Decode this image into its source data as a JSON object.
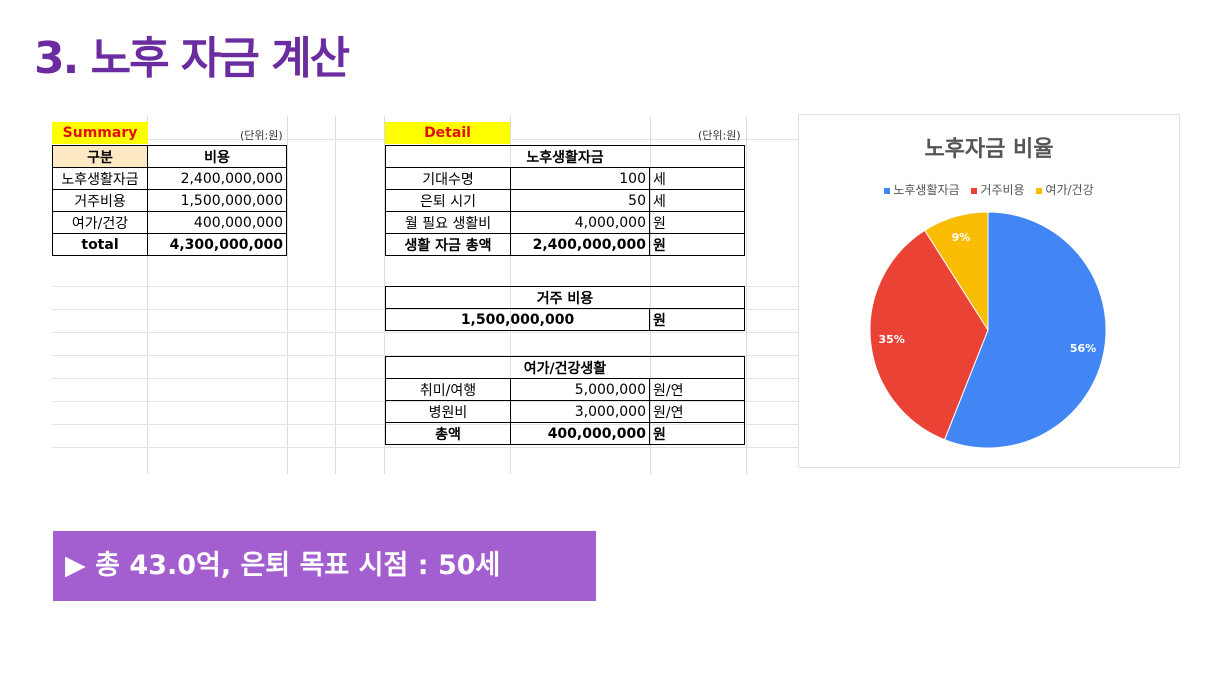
{
  "page": {
    "title": "3. 노후 자금 계산"
  },
  "summary": {
    "label": "Summary",
    "unit": "(단위:원)",
    "headers": [
      "구분",
      "비용"
    ],
    "rows": [
      [
        "노후생활자금",
        "2,400,000,000"
      ],
      [
        "거주비용",
        "1,500,000,000"
      ],
      [
        "여가/건강",
        "400,000,000"
      ]
    ],
    "total": [
      "total",
      "4,300,000,000"
    ]
  },
  "detail": {
    "label": "Detail",
    "unit": "(단위:원)",
    "living": {
      "title": "노후생활자금",
      "rows": [
        [
          "기대수명",
          "100",
          "세"
        ],
        [
          "은퇴 시기",
          "50",
          "세"
        ],
        [
          "월 필요 생활비",
          "4,000,000",
          "원"
        ],
        [
          "생활 자금 총액",
          "2,400,000,000",
          "원"
        ]
      ]
    },
    "housing": {
      "title": "거주 비용",
      "value": "1,500,000,000",
      "unit": "원"
    },
    "leisure": {
      "title": "여가/건강생활",
      "rows": [
        [
          "취미/여행",
          "5,000,000",
          "원/연"
        ],
        [
          "병원비",
          "3,000,000",
          "원/연"
        ],
        [
          "총액",
          "400,000,000",
          "원"
        ]
      ]
    }
  },
  "chart_data": {
    "type": "pie",
    "title": "노후자금 비율",
    "categories": [
      "노후생활자금",
      "거주비용",
      "여가/건강"
    ],
    "values": [
      56,
      35,
      9
    ],
    "labels": [
      "56%",
      "35%",
      "9%"
    ],
    "colors": [
      "#4285f4",
      "#ea4335",
      "#fbbc04"
    ],
    "legend": "top"
  },
  "banner": {
    "text": "▶ 총 43.0억, 은퇴 목표 시점 : 50세"
  }
}
